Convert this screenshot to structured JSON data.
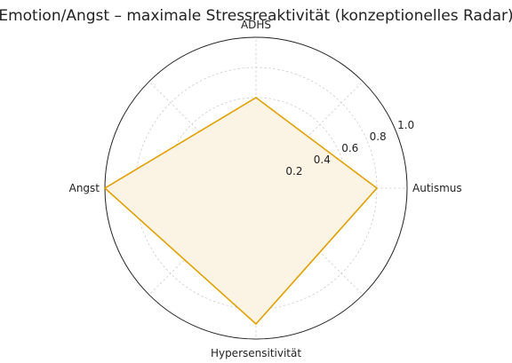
{
  "chart_data": {
    "type": "radar",
    "title": "Emotion/Angst – maximale Stressreaktivität (konzeptionelles Radar)",
    "axes": [
      "Autismus",
      "ADHS",
      "Angst",
      "Hypersensitivität"
    ],
    "series": [
      {
        "values": [
          0.8,
          0.6,
          1.0,
          0.9
        ],
        "color": "#e0a000",
        "fill": "#fbf3e3"
      }
    ],
    "rlim": [
      0,
      1.0
    ],
    "rticks": [
      0.2,
      0.4,
      0.6,
      0.8,
      1.0
    ],
    "rtick_labels": [
      "0.2",
      "0.4",
      "0.6",
      "0.8",
      "1.0"
    ],
    "grid": true,
    "colors": {
      "outer_circle": "#222222",
      "grid": "#cccccc",
      "text": "#222222"
    }
  }
}
